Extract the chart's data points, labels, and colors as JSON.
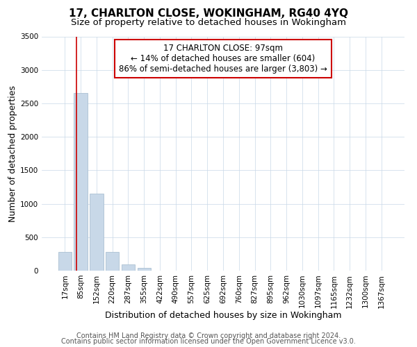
{
  "title": "17, CHARLTON CLOSE, WOKINGHAM, RG40 4YQ",
  "subtitle": "Size of property relative to detached houses in Wokingham",
  "xlabel": "Distribution of detached houses by size in Wokingham",
  "ylabel": "Number of detached properties",
  "bar_labels": [
    "17sqm",
    "85sqm",
    "152sqm",
    "220sqm",
    "287sqm",
    "355sqm",
    "422sqm",
    "490sqm",
    "557sqm",
    "625sqm",
    "692sqm",
    "760sqm",
    "827sqm",
    "895sqm",
    "962sqm",
    "1030sqm",
    "1097sqm",
    "1165sqm",
    "1232sqm",
    "1300sqm",
    "1367sqm"
  ],
  "bar_heights": [
    280,
    2650,
    1150,
    280,
    95,
    45,
    0,
    0,
    0,
    0,
    0,
    0,
    0,
    0,
    0,
    0,
    0,
    0,
    0,
    0,
    0
  ],
  "bar_color": "#c8d8e8",
  "bar_edge_color": "#a0b8cc",
  "vline_color": "#cc0000",
  "annotation_title": "17 CHARLTON CLOSE: 97sqm",
  "annotation_line1": "← 14% of detached houses are smaller (604)",
  "annotation_line2": "86% of semi-detached houses are larger (3,803) →",
  "annotation_box_color": "#ffffff",
  "annotation_box_edge": "#cc0000",
  "ylim": [
    0,
    3500
  ],
  "yticks": [
    0,
    500,
    1000,
    1500,
    2000,
    2500,
    3000,
    3500
  ],
  "footer1": "Contains HM Land Registry data © Crown copyright and database right 2024.",
  "footer2": "Contains public sector information licensed under the Open Government Licence v3.0.",
  "bg_color": "#ffffff",
  "grid_color": "#c8d8e8",
  "title_fontsize": 11,
  "subtitle_fontsize": 9.5,
  "axis_label_fontsize": 9,
  "tick_fontsize": 7.5,
  "footer_fontsize": 7
}
